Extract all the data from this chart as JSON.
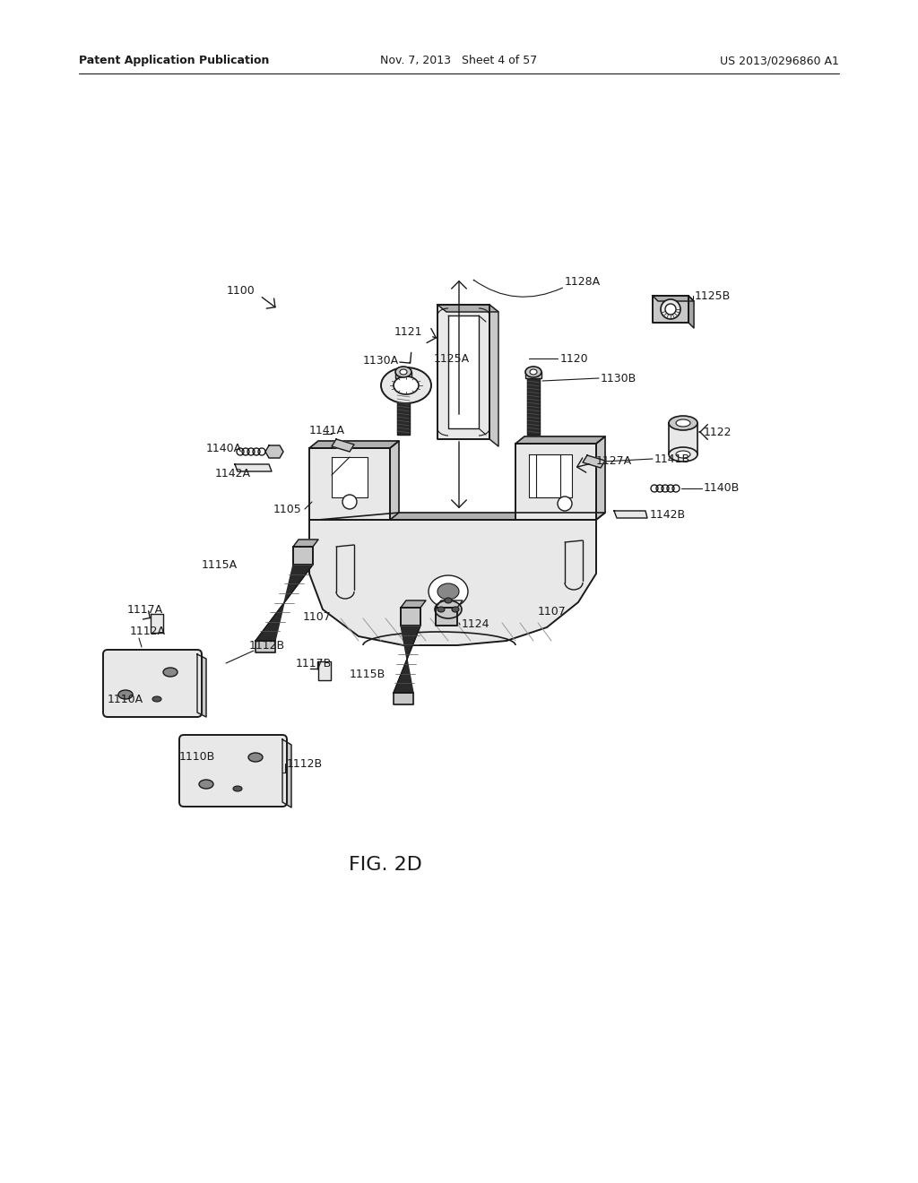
{
  "bg_color": "#ffffff",
  "header_left": "Patent Application Publication",
  "header_center": "Nov. 7, 2013   Sheet 4 of 57",
  "header_right": "US 2013/0296860 A1",
  "fig_label": "FIG. 2D",
  "dark": "#1a1a1a",
  "gray_fill": "#c8c8c8",
  "light_fill": "#e8e8e8",
  "med_fill": "#b0b0b0",
  "white": "#ffffff"
}
